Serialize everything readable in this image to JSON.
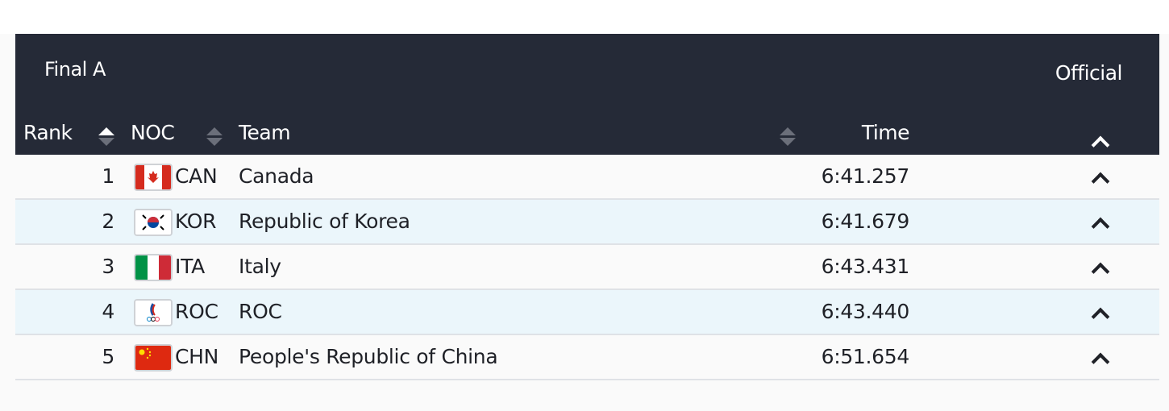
{
  "header": {
    "title": "Final A",
    "status": "Official"
  },
  "columns": {
    "rank": "Rank",
    "noc": "NOC",
    "team": "Team",
    "time": "Time"
  },
  "sort": {
    "active_column": "rank",
    "direction": "ascending"
  },
  "rows": [
    {
      "rank": "1",
      "noc": "CAN",
      "team": "Canada",
      "time": "6:41.257",
      "flag": "canada-flag"
    },
    {
      "rank": "2",
      "noc": "KOR",
      "team": "Republic of Korea",
      "time": "6:41.679",
      "flag": "korea-flag"
    },
    {
      "rank": "3",
      "noc": "ITA",
      "team": "Italy",
      "time": "6:43.431",
      "flag": "italy-flag"
    },
    {
      "rank": "4",
      "noc": "ROC",
      "team": "ROC",
      "time": "6:43.440",
      "flag": "roc-flag"
    },
    {
      "rank": "5",
      "noc": "CHN",
      "team": "People's Republic of China",
      "time": "6:51.654",
      "flag": "china-flag"
    }
  ],
  "colors": {
    "header_bg": "#252a37",
    "row_alt_bg": "#ebf6fb",
    "row_bg": "#fafafa"
  }
}
